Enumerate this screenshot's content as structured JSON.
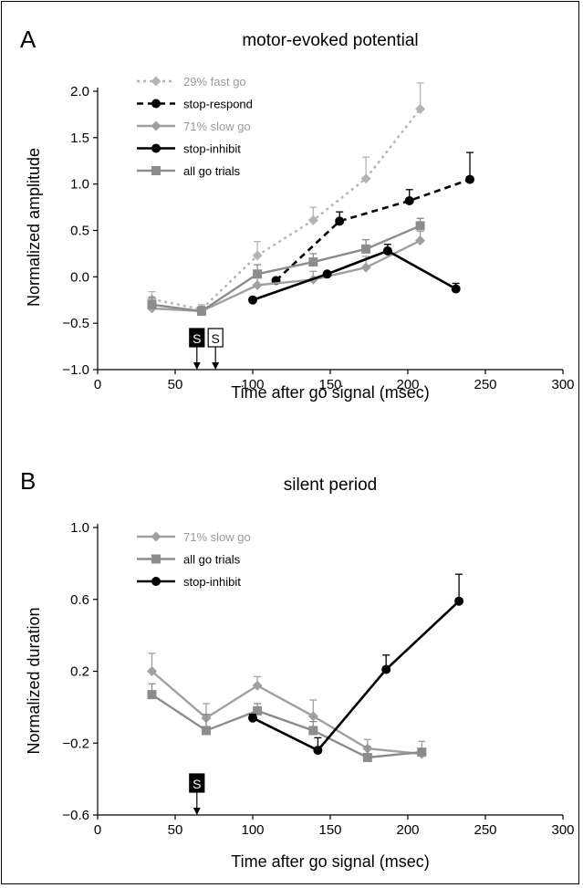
{
  "chart_data": [
    {
      "panel_label": "A",
      "type": "line",
      "title": "motor-evoked potential",
      "xlabel": "Time after go signal (msec)",
      "ylabel": "Normalized amplitude",
      "xlim": [
        0,
        300
      ],
      "ylim": [
        -1.0,
        2.0
      ],
      "xticks": [
        0,
        50,
        100,
        150,
        200,
        250,
        300
      ],
      "yticks": [
        -1.0,
        -0.5,
        0.0,
        0.5,
        1.0,
        1.5,
        2.0
      ],
      "xtick_labels": [
        "0",
        "50",
        "100",
        "150",
        "200",
        "250",
        "300"
      ],
      "ytick_labels": [
        "−1.0",
        "−0.5",
        "0.0",
        "0.5",
        "1.0",
        "1.5",
        "2.0"
      ],
      "legend_position": "top-left",
      "series": [
        {
          "name": "29% fast go",
          "color": "#b4b4b4",
          "dash": "dotted",
          "marker": "diamond",
          "x": [
            35,
            67,
            103,
            139,
            173,
            208
          ],
          "y": [
            -0.24,
            -0.35,
            0.23,
            0.61,
            1.06,
            1.81
          ],
          "err": [
            0.08,
            0.05,
            0.15,
            0.14,
            0.23,
            0.28
          ]
        },
        {
          "name": "stop-respond",
          "color": "#000000",
          "dash": "dashed",
          "marker": "circle",
          "x": [
            115,
            156,
            201,
            240
          ],
          "y": [
            -0.04,
            0.6,
            0.82,
            1.05
          ],
          "err": [
            0,
            0.1,
            0.12,
            0.29
          ]
        },
        {
          "name": "71% slow go",
          "color": "#a0a0a0",
          "dash": "solid",
          "marker": "diamond",
          "x": [
            35,
            67,
            103,
            139,
            173,
            208
          ],
          "y": [
            -0.34,
            -0.37,
            -0.09,
            -0.03,
            0.1,
            0.39
          ],
          "err": [
            0.08,
            0.05,
            0.08,
            0.09,
            0.12,
            0.1
          ]
        },
        {
          "name": "stop-inhibit",
          "color": "#000000",
          "dash": "solid",
          "marker": "circle",
          "x": [
            100,
            148,
            187,
            231
          ],
          "y": [
            -0.25,
            0.03,
            0.28,
            -0.13
          ],
          "err": [
            0,
            0,
            0.07,
            0.06
          ]
        },
        {
          "name": "all go trials",
          "color": "#8c8c8c",
          "dash": "solid",
          "marker": "square",
          "x": [
            35,
            67,
            103,
            139,
            173,
            208
          ],
          "y": [
            -0.3,
            -0.37,
            0.03,
            0.16,
            0.3,
            0.55
          ],
          "err": [
            0.08,
            0.05,
            0.1,
            0.09,
            0.1,
            0.08
          ]
        }
      ],
      "signal_markers": [
        {
          "label": "S",
          "x": 64,
          "style": "filled"
        },
        {
          "label": "S",
          "x": 76,
          "style": "outline"
        }
      ]
    },
    {
      "panel_label": "B",
      "type": "line",
      "title": "silent period",
      "xlabel": "Time after go signal (msec)",
      "ylabel": "Normalized duration",
      "xlim": [
        0,
        300
      ],
      "ylim": [
        -0.6,
        1.0
      ],
      "xticks": [
        0,
        50,
        100,
        150,
        200,
        250,
        300
      ],
      "yticks": [
        -0.6,
        -0.2,
        0.2,
        0.6,
        1.0
      ],
      "xtick_labels": [
        "0",
        "50",
        "100",
        "150",
        "200",
        "250",
        "300"
      ],
      "ytick_labels": [
        "−0.6",
        "−0.2",
        "0.2",
        "0.6",
        "1.0"
      ],
      "legend_position": "top-left",
      "series": [
        {
          "name": "71% slow go",
          "color": "#a0a0a0",
          "dash": "solid",
          "marker": "diamond",
          "x": [
            35,
            70,
            103,
            139,
            174,
            209
          ],
          "y": [
            0.2,
            -0.06,
            0.12,
            -0.05,
            -0.23,
            -0.26
          ],
          "err": [
            0.1,
            0.08,
            0.05,
            0.09,
            0.05,
            0.07
          ]
        },
        {
          "name": "all go trials",
          "color": "#8c8c8c",
          "dash": "solid",
          "marker": "square",
          "x": [
            35,
            70,
            103,
            139,
            174,
            209
          ],
          "y": [
            0.07,
            -0.13,
            -0.02,
            -0.13,
            -0.28,
            -0.25
          ],
          "err": [
            0.06,
            0.09,
            0.04,
            0.05,
            0.06,
            0.02
          ]
        },
        {
          "name": "stop-inhibit",
          "color": "#000000",
          "dash": "solid",
          "marker": "circle",
          "x": [
            100,
            142,
            186,
            233
          ],
          "y": [
            -0.06,
            -0.24,
            0.21,
            0.59
          ],
          "err": [
            0.02,
            0.07,
            0.08,
            0.15
          ]
        }
      ],
      "signal_markers": [
        {
          "label": "S",
          "x": 64,
          "style": "filled"
        }
      ]
    }
  ]
}
